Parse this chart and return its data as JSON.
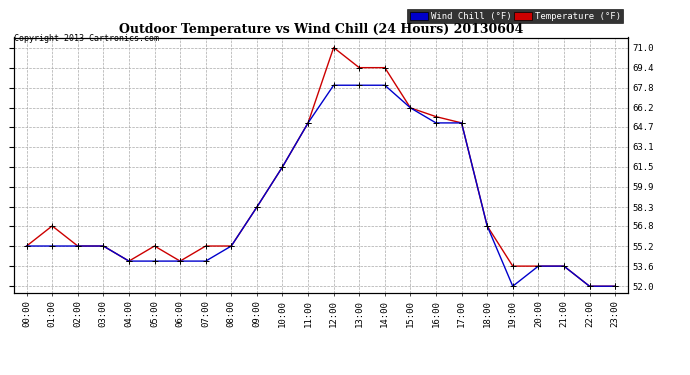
{
  "title": "Outdoor Temperature vs Wind Chill (24 Hours) 20130604",
  "copyright": "Copyright 2013 Cartronics.com",
  "hours": [
    "00:00",
    "01:00",
    "02:00",
    "03:00",
    "04:00",
    "05:00",
    "06:00",
    "07:00",
    "08:00",
    "09:00",
    "10:00",
    "11:00",
    "12:00",
    "13:00",
    "14:00",
    "15:00",
    "16:00",
    "17:00",
    "18:00",
    "19:00",
    "20:00",
    "21:00",
    "22:00",
    "23:00"
  ],
  "temperature": [
    55.2,
    56.8,
    55.2,
    55.2,
    54.0,
    55.2,
    54.0,
    55.2,
    55.2,
    58.3,
    61.5,
    65.0,
    71.0,
    69.4,
    69.4,
    66.2,
    65.5,
    65.0,
    56.8,
    53.6,
    53.6,
    53.6,
    52.0,
    52.0
  ],
  "wind_chill": [
    55.2,
    55.2,
    55.2,
    55.2,
    54.0,
    54.0,
    54.0,
    54.0,
    55.2,
    58.3,
    61.5,
    65.0,
    68.0,
    68.0,
    68.0,
    66.2,
    65.0,
    65.0,
    56.8,
    52.0,
    53.6,
    53.6,
    52.0,
    52.0
  ],
  "temp_color": "#cc0000",
  "wind_color": "#0000cc",
  "bg_color": "#ffffff",
  "grid_color": "#aaaaaa",
  "ylim": [
    51.5,
    71.8
  ],
  "yticks": [
    52.0,
    53.6,
    55.2,
    56.8,
    58.3,
    59.9,
    61.5,
    63.1,
    64.7,
    66.2,
    67.8,
    69.4,
    71.0
  ],
  "legend_wind_label": "Wind Chill (°F)",
  "legend_temp_label": "Temperature (°F)"
}
